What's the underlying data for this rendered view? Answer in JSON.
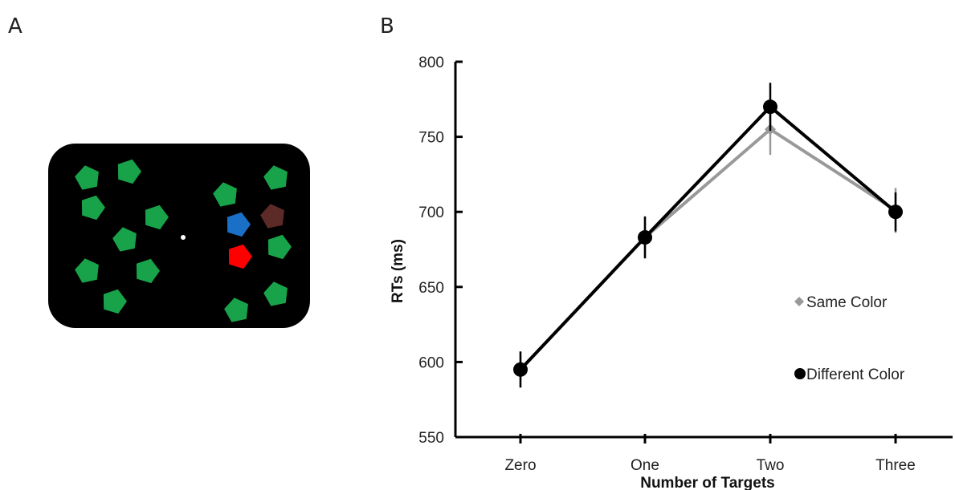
{
  "panels": {
    "a": "A",
    "b": "B"
  },
  "stimulus": {
    "background": "#000000",
    "fixation_color": "#ffffff",
    "items": [
      {
        "color": "#18a34a"
      },
      {
        "color": "#18a34a"
      },
      {
        "color": "#18a34a"
      },
      {
        "color": "#18a34a"
      },
      {
        "color": "#18a34a"
      },
      {
        "color": "#18a34a"
      },
      {
        "color": "#18a34a"
      },
      {
        "color": "#18a34a"
      },
      {
        "color": "#18a34a"
      },
      {
        "color": "#18a34a"
      },
      {
        "color": "#18a34a"
      },
      {
        "color": "#18a34a"
      },
      {
        "color": "#18a34a"
      },
      {
        "color": "#1a6fc7"
      },
      {
        "color": "#5c2b28"
      },
      {
        "color": "#ff0000"
      }
    ]
  },
  "chart_data": {
    "type": "line",
    "title": "",
    "xlabel": "Number of Targets",
    "ylabel": "RTs (ms)",
    "categories": [
      "Zero",
      "One",
      "Two",
      "Three"
    ],
    "ylim": [
      550,
      800
    ],
    "yticks": [
      550,
      600,
      650,
      700,
      750,
      800
    ],
    "ytick_labels": [
      "550",
      "600",
      "650",
      "700",
      "750",
      "800"
    ],
    "grid": false,
    "legend_position": "right",
    "series": [
      {
        "name": "Same Color",
        "color": "#999999",
        "marker": "diamond",
        "values": [
          595,
          683,
          755,
          701
        ],
        "errors": [
          12,
          13,
          17,
          15
        ]
      },
      {
        "name": "Different Color",
        "color": "#000000",
        "marker": "circle",
        "values": [
          595,
          683,
          770,
          700
        ],
        "errors": [
          12,
          14,
          16,
          13
        ]
      }
    ]
  }
}
